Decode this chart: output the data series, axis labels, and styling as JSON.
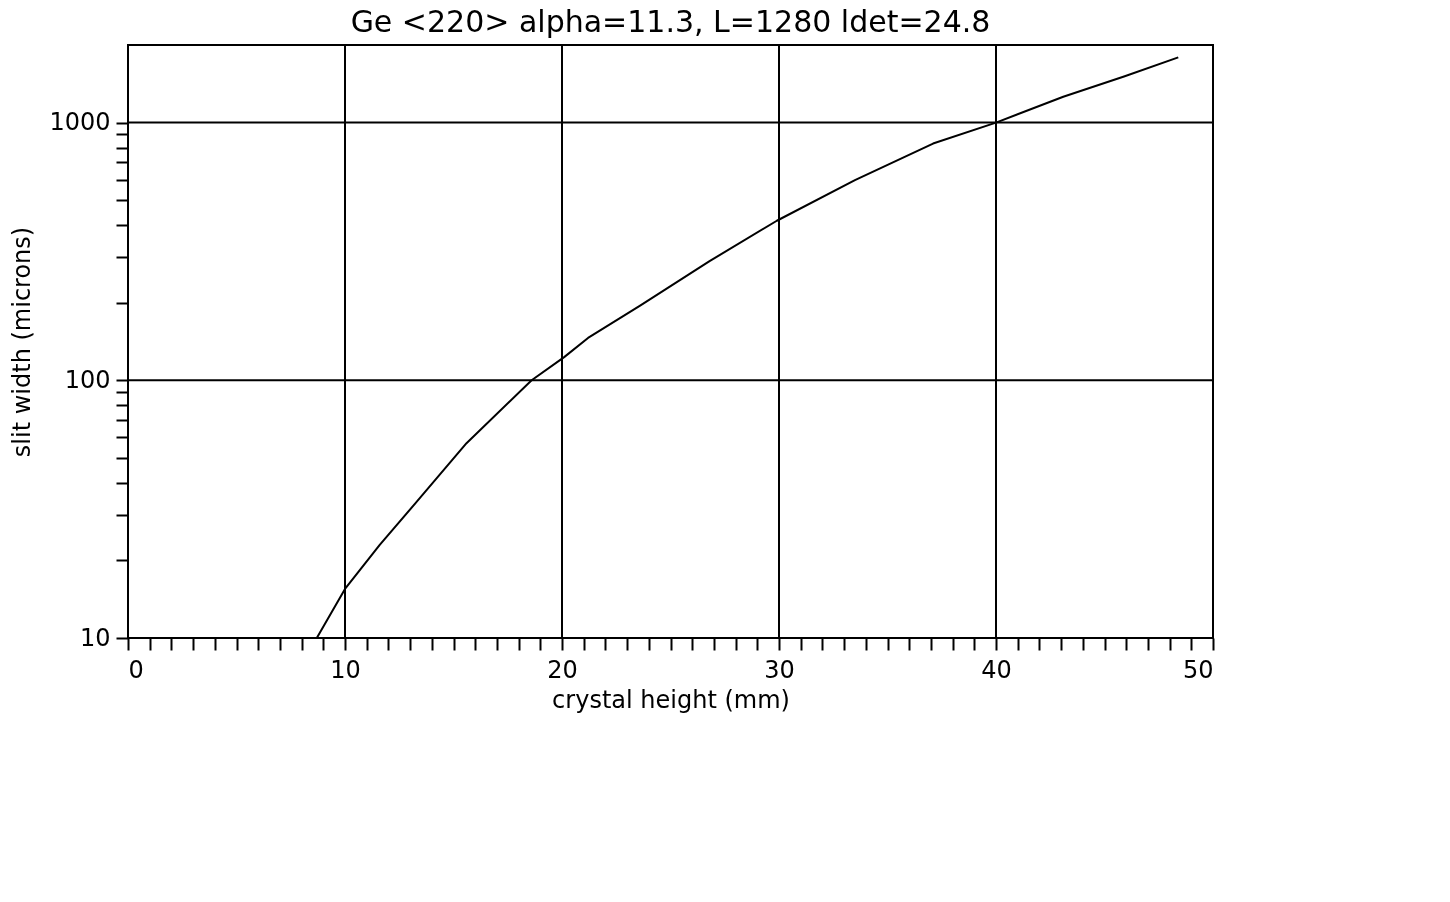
{
  "chart_data": {
    "type": "line",
    "title": "Ge <220> alpha=11.3, L=1280 ldet=24.8",
    "xlabel": "crystal height (mm)",
    "ylabel": "slit width (microns)",
    "x": [
      8.7,
      10,
      11.6,
      13.2,
      15.6,
      18.6,
      20.1,
      21.2,
      23.6,
      26.8,
      29.9,
      33.5,
      37.1,
      40,
      43.1,
      45.9,
      48.4
    ],
    "series": [
      {
        "color": "#000000",
        "values": [
          10,
          15.5,
          23,
          33,
          57,
          100,
          123,
          146,
          195,
          290,
          416,
          598,
          829,
          1000,
          1260,
          1510,
          1790
        ]
      }
    ],
    "log": "y",
    "grid": true,
    "marker": "none",
    "line_style": "solid",
    "xlim": [
      0,
      50
    ],
    "ylim": [
      10,
      2000
    ],
    "xticks": [
      0,
      {
        "value": 1,
        "label": null
      },
      {
        "value": 2,
        "label": null
      },
      {
        "value": 3,
        "label": null
      },
      {
        "value": 4,
        "label": null
      },
      {
        "value": 5,
        "label": null
      },
      {
        "value": 6,
        "label": null
      },
      {
        "value": 7,
        "label": null
      },
      {
        "value": 8,
        "label": null
      },
      {
        "value": 9,
        "label": null
      },
      10,
      {
        "value": 11,
        "label": null
      },
      {
        "value": 12,
        "label": null
      },
      {
        "value": 13,
        "label": null
      },
      {
        "value": 14,
        "label": null
      },
      {
        "value": 15,
        "label": null
      },
      {
        "value": 16,
        "label": null
      },
      {
        "value": 17,
        "label": null
      },
      {
        "value": 18,
        "label": null
      },
      {
        "value": 19,
        "label": null
      },
      20,
      {
        "value": 21,
        "label": null
      },
      {
        "value": 22,
        "label": null
      },
      {
        "value": 23,
        "label": null
      },
      {
        "value": 24,
        "label": null
      },
      {
        "value": 25,
        "label": null
      },
      {
        "value": 26,
        "label": null
      },
      {
        "value": 27,
        "label": null
      },
      {
        "value": 28,
        "label": null
      },
      {
        "value": 29,
        "label": null
      },
      30,
      {
        "value": 31,
        "label": null
      },
      {
        "value": 32,
        "label": null
      },
      {
        "value": 33,
        "label": null
      },
      {
        "value": 34,
        "label": null
      },
      {
        "value": 35,
        "label": null
      },
      {
        "value": 36,
        "label": null
      },
      {
        "value": 37,
        "label": null
      },
      {
        "value": 38,
        "label": null
      },
      {
        "value": 39,
        "label": null
      },
      40,
      {
        "value": 41,
        "label": null
      },
      {
        "value": 42,
        "label": null
      },
      {
        "value": 43,
        "label": null
      },
      {
        "value": 44,
        "label": null
      },
      {
        "value": 45,
        "label": null
      },
      {
        "value": 46,
        "label": null
      },
      {
        "value": 47,
        "label": null
      },
      {
        "value": 48,
        "label": null
      },
      {
        "value": 49,
        "label": null
      },
      50
    ],
    "yticks": [
      10,
      {
        "value": 20,
        "label": null
      },
      {
        "value": 30,
        "label": null
      },
      {
        "value": 40,
        "label": null
      },
      {
        "value": 50,
        "label": null
      },
      {
        "value": 60,
        "label": null
      },
      {
        "value": 70,
        "label": null
      },
      {
        "value": 80,
        "label": null
      },
      {
        "value": 90,
        "label": null
      },
      100,
      {
        "value": 200,
        "label": null
      },
      {
        "value": 300,
        "label": null
      },
      {
        "value": 400,
        "label": null
      },
      {
        "value": 500,
        "label": null
      },
      {
        "value": 600,
        "label": null
      },
      {
        "value": 700,
        "label": null
      },
      {
        "value": 800,
        "label": null
      },
      {
        "value": 900,
        "label": null
      },
      1000
    ]
  }
}
